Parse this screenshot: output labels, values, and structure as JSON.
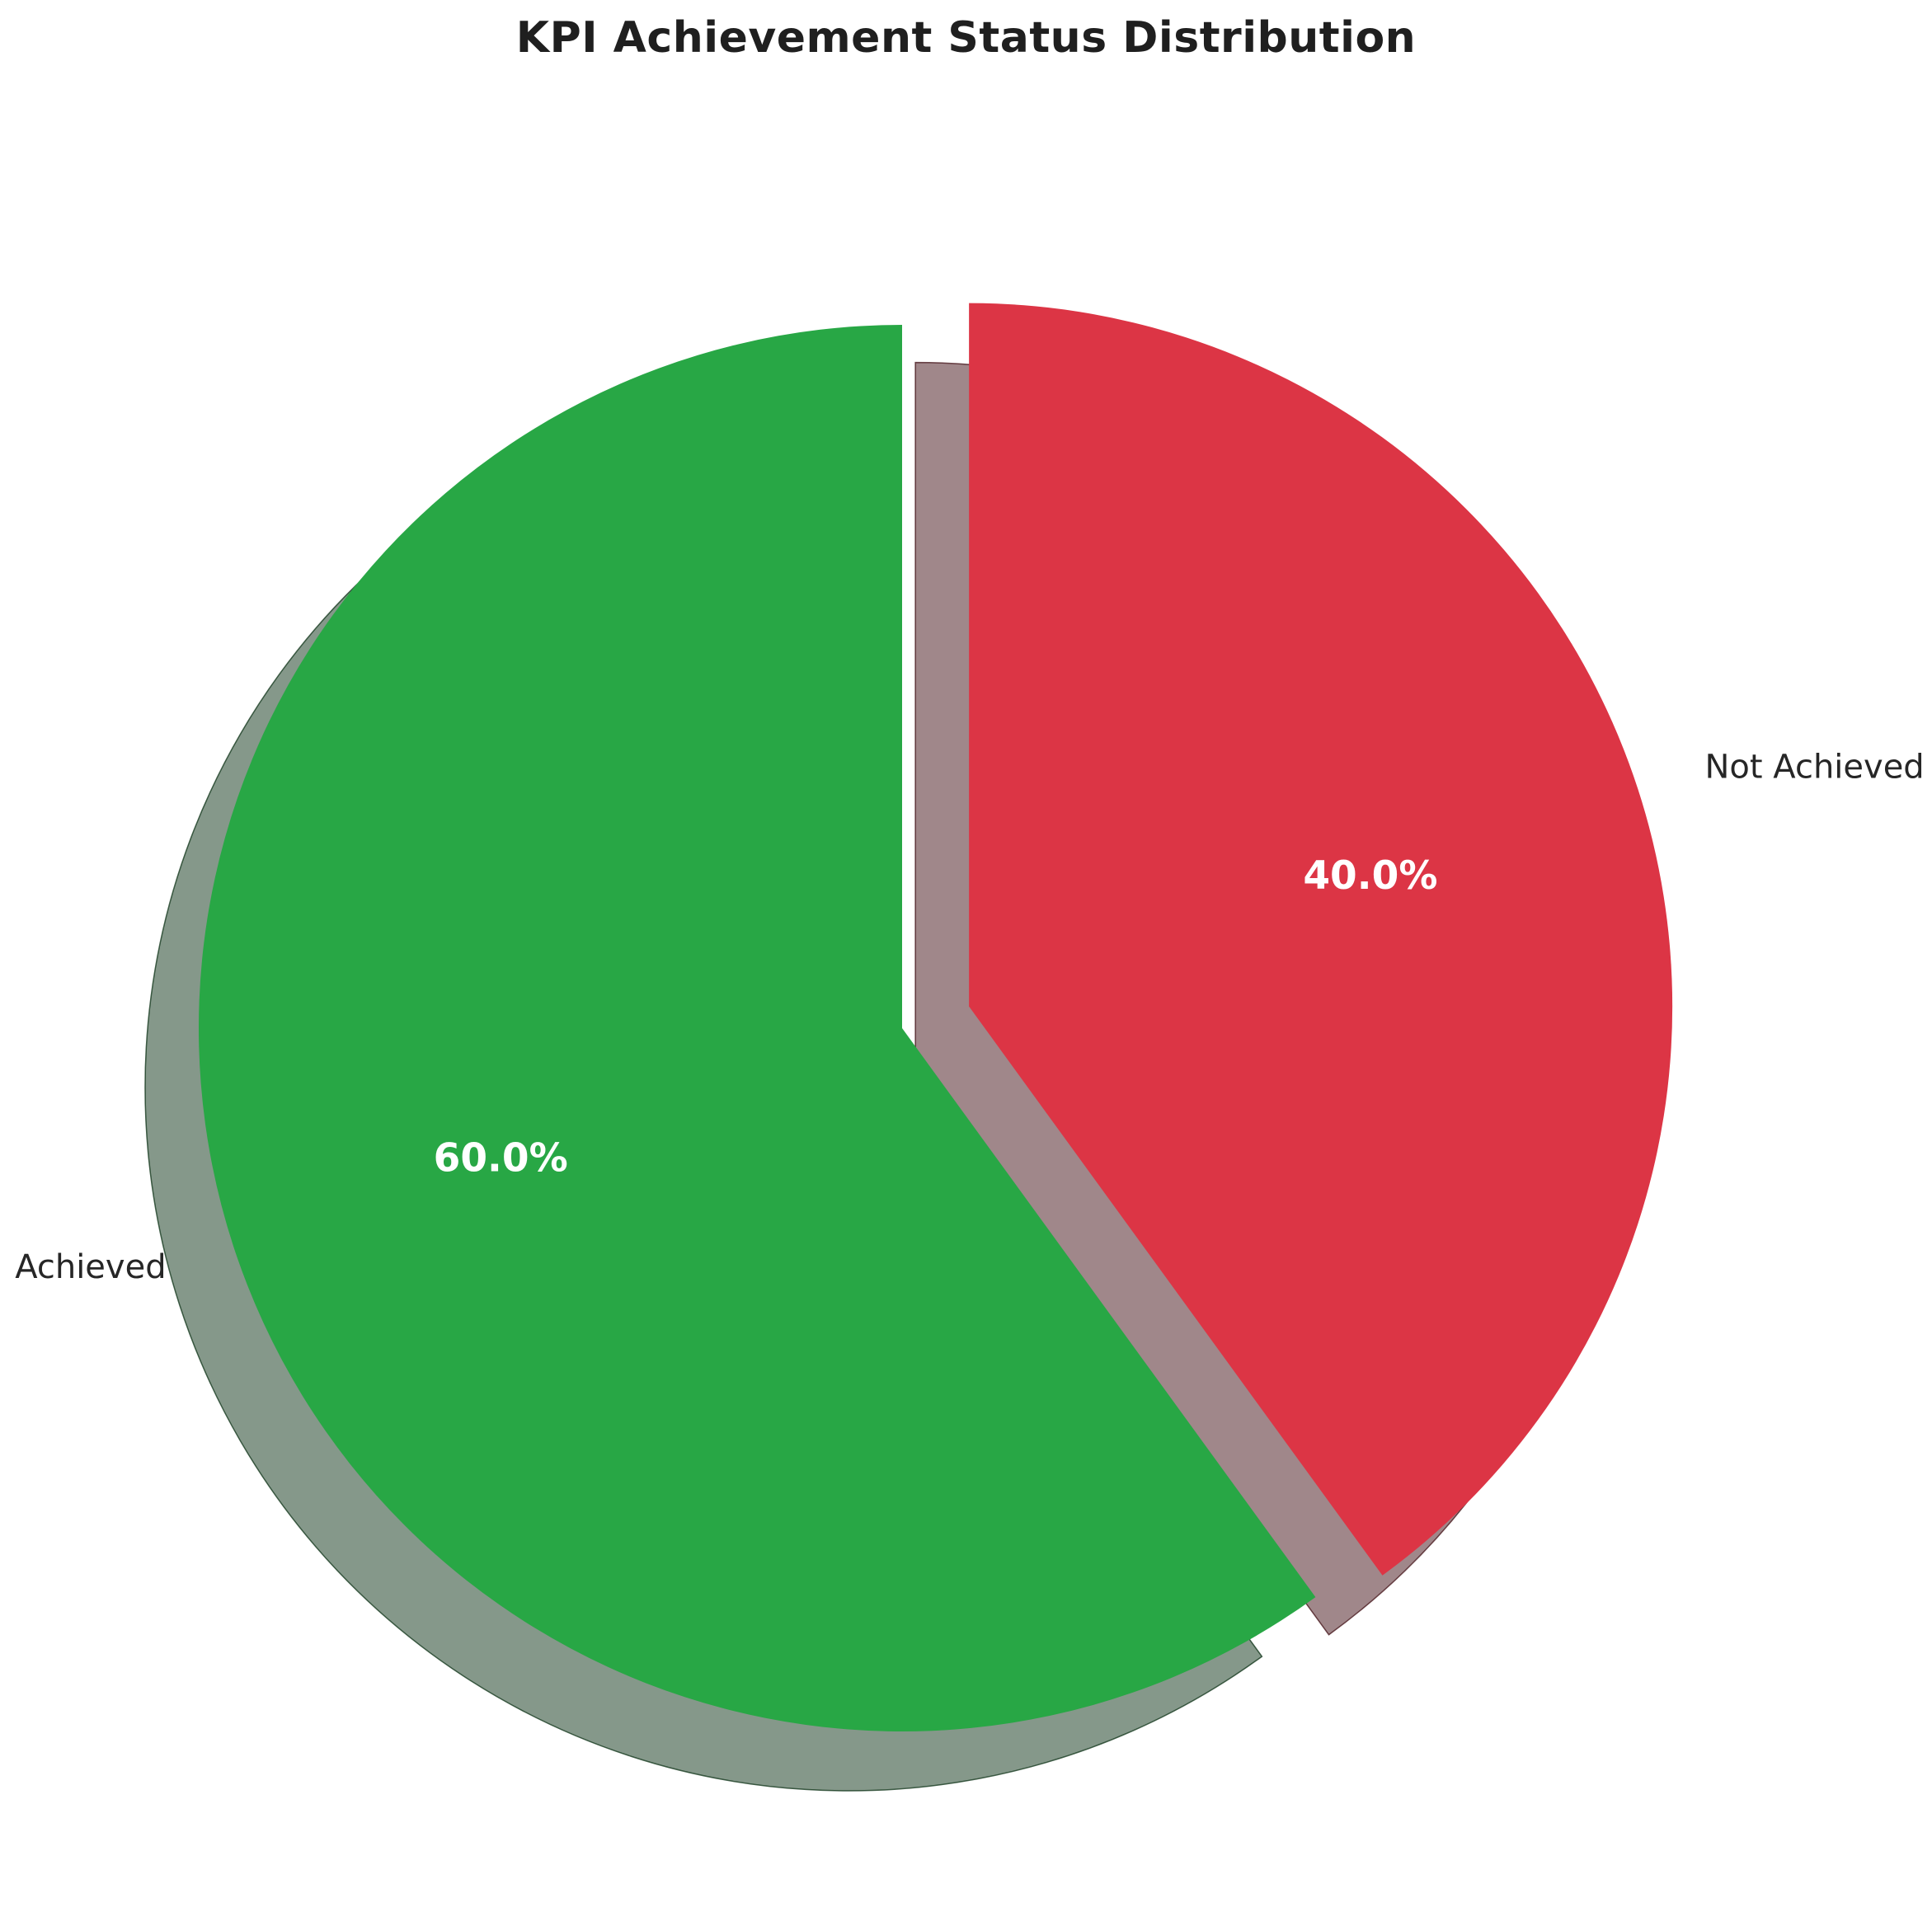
{
  "figure": {
    "background": "#ffffff"
  },
  "chart_data": {
    "type": "pie",
    "title": "KPI Achievement Status Distribution",
    "categories": [
      "Achieved",
      "Not Achieved"
    ],
    "values": [
      60.0,
      40.0
    ],
    "slices": [
      {
        "label": "Achieved",
        "value": 60.0,
        "pct_label": "60.0%",
        "color": "#28a745",
        "explode": 0.0
      },
      {
        "label": "Not Achieved",
        "value": 40.0,
        "pct_label": "40.0%",
        "color": "#dc3545",
        "explode": 0.1
      }
    ],
    "startangle": 90,
    "counterclock": true,
    "shadow": true,
    "autopct_format": "%.1f%%",
    "legend": "none",
    "grid": "off",
    "label_color": "#262626",
    "pct_text_color": "#ffffff",
    "title_color": "#1f1f1f",
    "background": "#ffffff"
  }
}
